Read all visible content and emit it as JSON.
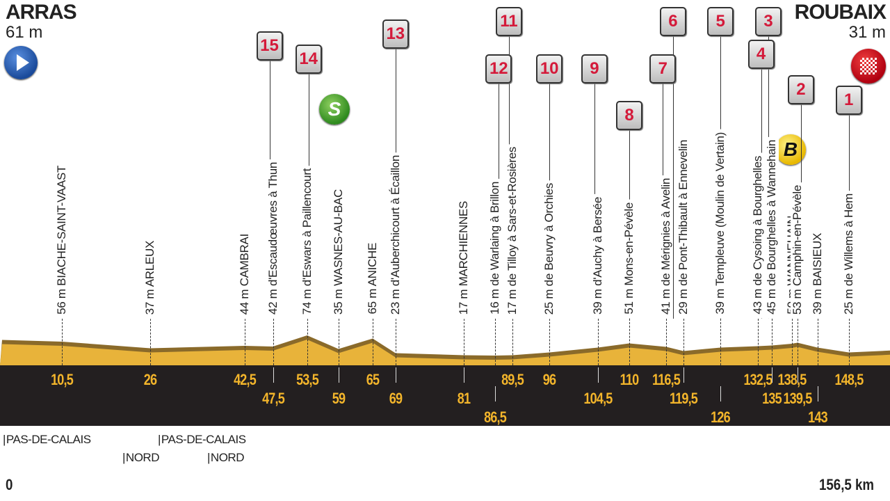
{
  "start": {
    "city": "ARRAS",
    "altitude": "61 m",
    "icon": "start-arrow-icon"
  },
  "finish": {
    "city": "ROUBAIX",
    "altitude": "31 m",
    "icon": "checkered-flag-icon"
  },
  "axis": {
    "start": "0",
    "end": "156,5 km"
  },
  "colors": {
    "profile": "#e8b33a",
    "profile_dark": "#8a6a2a",
    "band": "#231f20",
    "km_text": "#f3b52b",
    "sector_number": "#d41a3a"
  },
  "points": [
    {
      "km": 10.5,
      "km_label": "10,5",
      "label": "56 m BIACHE-SAINT-VAAST"
    },
    {
      "km": 26,
      "km_label": "26",
      "label": "37 m ARLEUX"
    },
    {
      "km": 42.5,
      "km_label": "42,5",
      "label": "44 m CAMBRAI"
    },
    {
      "km": 47.5,
      "km_label": "47,5",
      "label": "42 m d'Escaudœuvres à Thun",
      "sector": "15"
    },
    {
      "km": 53.5,
      "km_label": "53,5",
      "label": "74 m d'Eswars à Paillencourt",
      "sector": "14"
    },
    {
      "km": 59,
      "km_label": "59",
      "label": "35 m WASNES-AU-BAC",
      "badge": "S"
    },
    {
      "km": 65,
      "km_label": "65",
      "label": "65 m ANICHE"
    },
    {
      "km": 69,
      "km_label": "69",
      "label": "23 m d'Auberchicourt à Écaillon",
      "sector": "13"
    },
    {
      "km": 81,
      "km_label": "81",
      "label": "17 m MARCHIENNES"
    },
    {
      "km": 86.5,
      "km_label": "86,5",
      "label": "16 m de Warlaing à Brillon",
      "sector": "12"
    },
    {
      "km": 89.5,
      "km_label": "89,5",
      "label": "17 m de Tilloy à Sars-et-Rosières",
      "sector": "11"
    },
    {
      "km": 96,
      "km_label": "96",
      "label": "25 m de Beuvry à Orchies",
      "sector": "10"
    },
    {
      "km": 104.5,
      "km_label": "104,5",
      "label": "39 m d'Auchy à Bersée",
      "sector": "9"
    },
    {
      "km": 110,
      "km_label": "110",
      "label": "51 m Mons-en-Pévèle",
      "sector": "8"
    },
    {
      "km": 116.5,
      "km_label": "116,5",
      "label": "41 m de Mérignies à Avelin",
      "sector": "7"
    },
    {
      "km": 119.5,
      "km_label": "119,5",
      "label": "29 m de Pont-Thibault à Ennevelin",
      "sector": "6"
    },
    {
      "km": 126,
      "km_label": "126",
      "label": "39 m Templeuve (Moulin de Vertain)",
      "sector": "5"
    },
    {
      "km": 132.5,
      "km_label": "132,5",
      "label": "43 m de Cysoing à Bourghelles",
      "sector": "4"
    },
    {
      "km": 135,
      "km_label": "135",
      "label": "45 m de Bourghelles à Wannehain",
      "sector": "3"
    },
    {
      "km": 138.5,
      "km_label": "138,5",
      "label": "50 m WANNEHAIN",
      "badge": "B"
    },
    {
      "km": 139.5,
      "km_label": "139,5",
      "label": "53 m Camphin-en-Pévèle",
      "sector": "2"
    },
    {
      "km": 143,
      "km_label": "143",
      "label": "39 m BAISIEUX"
    },
    {
      "km": 148.5,
      "km_label": "148,5",
      "label": "25 m de Willems à Hem",
      "sector": "1"
    }
  ],
  "departments": [
    {
      "name": "PAS-DE-CALAIS"
    },
    {
      "name": "NORD"
    },
    {
      "name": "PAS-DE-CALAIS"
    },
    {
      "name": "NORD"
    }
  ]
}
